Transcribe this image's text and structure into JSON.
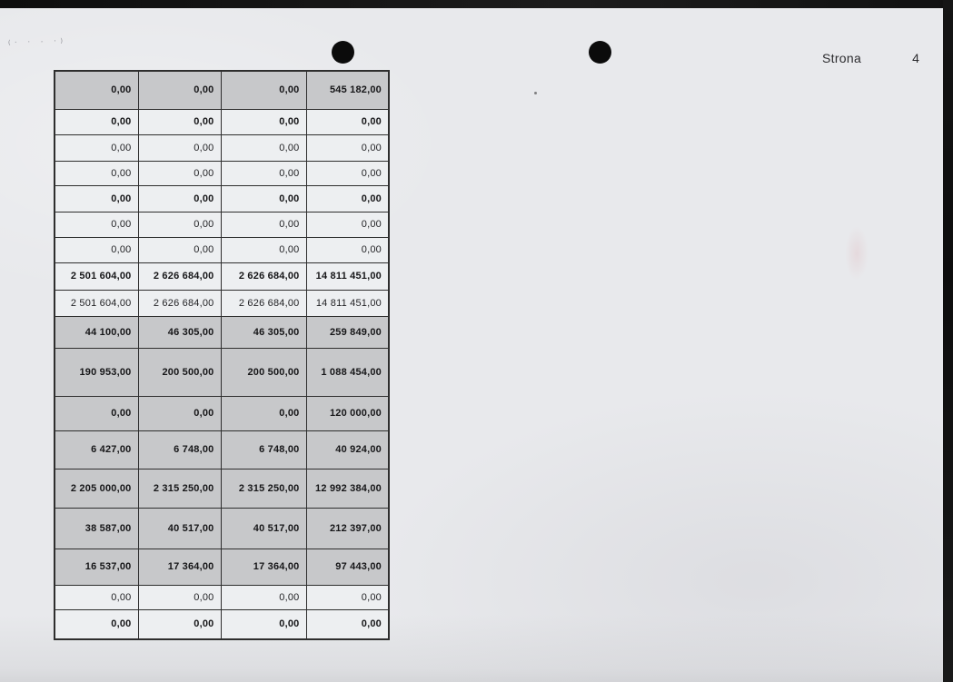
{
  "header": {
    "page_label": "Strona",
    "page_number": "4"
  },
  "table": {
    "columns": 4,
    "rows": [
      {
        "values": [
          "0,00",
          "0,00",
          "0,00",
          "545 182,00"
        ],
        "shaded": true,
        "bold": true
      },
      {
        "values": [
          "0,00",
          "0,00",
          "0,00",
          "0,00"
        ],
        "shaded": false,
        "bold": true
      },
      {
        "values": [
          "0,00",
          "0,00",
          "0,00",
          "0,00"
        ],
        "shaded": false,
        "bold": false
      },
      {
        "values": [
          "0,00",
          "0,00",
          "0,00",
          "0,00"
        ],
        "shaded": false,
        "bold": false
      },
      {
        "values": [
          "0,00",
          "0,00",
          "0,00",
          "0,00"
        ],
        "shaded": false,
        "bold": true
      },
      {
        "values": [
          "0,00",
          "0,00",
          "0,00",
          "0,00"
        ],
        "shaded": false,
        "bold": false
      },
      {
        "values": [
          "0,00",
          "0,00",
          "0,00",
          "0,00"
        ],
        "shaded": false,
        "bold": false
      },
      {
        "values": [
          "2 501 604,00",
          "2 626 684,00",
          "2 626 684,00",
          "14 811 451,00"
        ],
        "shaded": false,
        "bold": true
      },
      {
        "values": [
          "2 501 604,00",
          "2 626 684,00",
          "2 626 684,00",
          "14 811 451,00"
        ],
        "shaded": false,
        "bold": false
      },
      {
        "values": [
          "44 100,00",
          "46 305,00",
          "46 305,00",
          "259 849,00"
        ],
        "shaded": true,
        "bold": true
      },
      {
        "values": [
          "190 953,00",
          "200 500,00",
          "200 500,00",
          "1 088 454,00"
        ],
        "shaded": true,
        "bold": true
      },
      {
        "values": [
          "0,00",
          "0,00",
          "0,00",
          "120 000,00"
        ],
        "shaded": true,
        "bold": true
      },
      {
        "values": [
          "6 427,00",
          "6 748,00",
          "6 748,00",
          "40 924,00"
        ],
        "shaded": true,
        "bold": true
      },
      {
        "values": [
          "2 205 000,00",
          "2 315 250,00",
          "2 315 250,00",
          "12 992 384,00"
        ],
        "shaded": true,
        "bold": true
      },
      {
        "values": [
          "38 587,00",
          "40 517,00",
          "40 517,00",
          "212 397,00"
        ],
        "shaded": true,
        "bold": true
      },
      {
        "values": [
          "16 537,00",
          "17 364,00",
          "17 364,00",
          "97 443,00"
        ],
        "shaded": true,
        "bold": true
      },
      {
        "values": [
          "0,00",
          "0,00",
          "0,00",
          "0,00"
        ],
        "shaded": false,
        "bold": false
      },
      {
        "values": [
          "0,00",
          "0,00",
          "0,00",
          "0,00"
        ],
        "shaded": false,
        "bold": true
      }
    ]
  },
  "artifacts": {
    "pencil_marks": "(· ·   - ·)"
  },
  "colors": {
    "paper": "#e8e9ec",
    "white_cell": "#edeff1",
    "shaded_cell": "#c7c8ca",
    "border": "#2e2e2e",
    "ink": "#1f1f22",
    "hole_punch": "#0b0b0b"
  }
}
